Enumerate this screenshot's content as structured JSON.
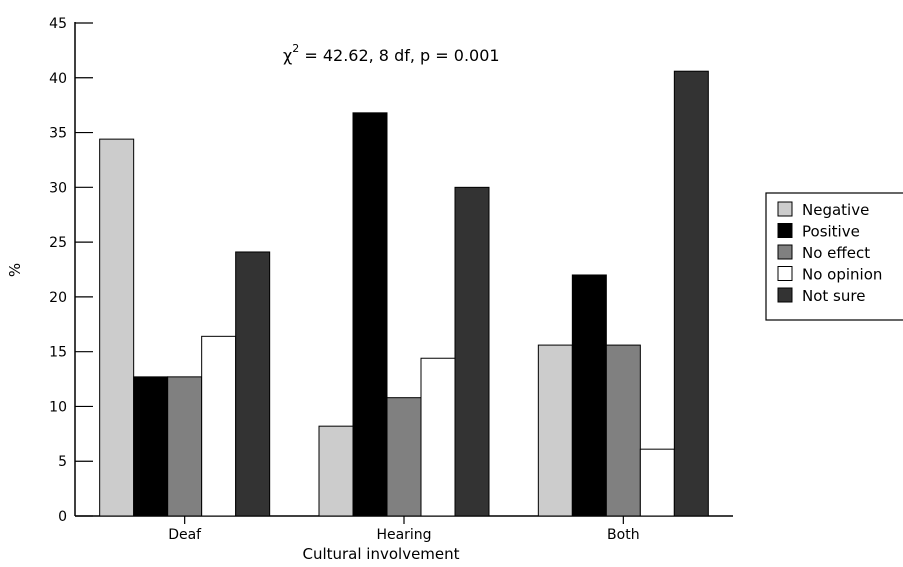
{
  "chart_data": {
    "type": "bar",
    "title": "",
    "xlabel": "Cultural involvement",
    "ylabel": "%",
    "ylim": [
      0,
      45
    ],
    "yticks": [
      0,
      5,
      10,
      15,
      20,
      25,
      30,
      35,
      40,
      45
    ],
    "categories": [
      "Deaf",
      "Hearing",
      "Both"
    ],
    "series": [
      {
        "name": "Negative",
        "color": "#cccccc",
        "values": [
          34.4,
          8.2,
          15.6
        ]
      },
      {
        "name": "Positive",
        "color": "#000000",
        "values": [
          12.7,
          36.8,
          22.0
        ]
      },
      {
        "name": "No effect",
        "color": "#808080",
        "values": [
          12.7,
          10.8,
          15.6
        ]
      },
      {
        "name": "No opinion",
        "color": "#ffffff",
        "values": [
          16.4,
          14.4,
          6.1
        ]
      },
      {
        "name": "Not sure",
        "color": "#333333",
        "values": [
          24.1,
          30.0,
          40.6
        ]
      }
    ],
    "annotation": {
      "chi_symbol": "χ",
      "superscript": "2",
      "text": " = 42.62, 8 df, p = 0.001"
    },
    "legend_position": "right",
    "grid": false
  }
}
